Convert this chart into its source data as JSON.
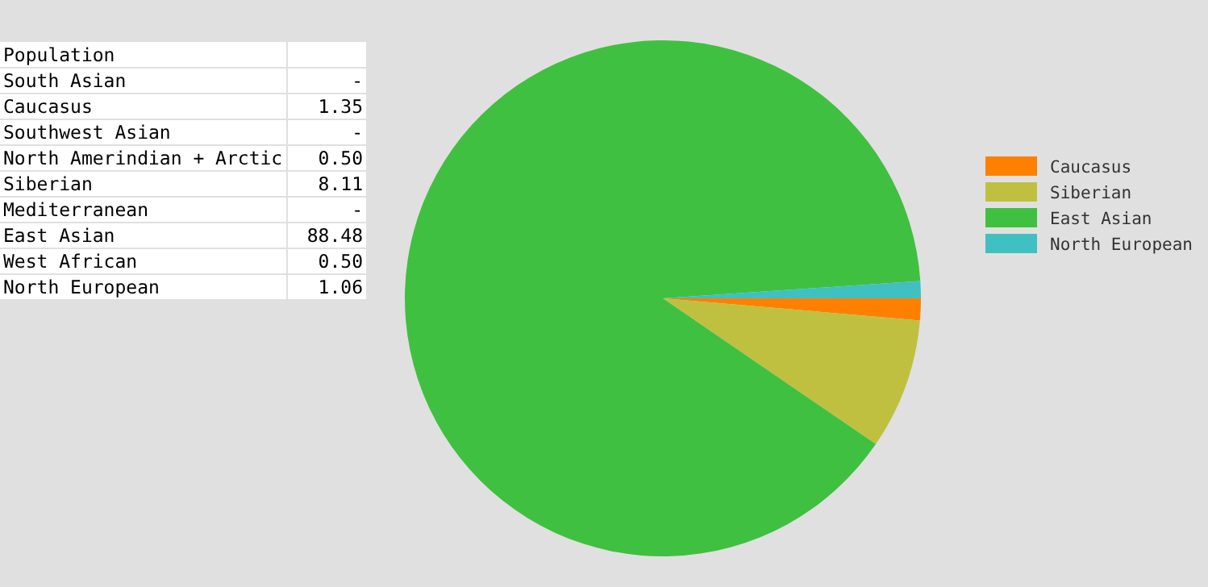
{
  "chart_data": [
    {
      "type": "other",
      "annotations": [
        "Population",
        "South Asian",
        "-",
        "Caucasus",
        "1.35",
        "Southwest Asian",
        "-",
        "North Amerindian + Arctic",
        "0.50",
        "Siberian",
        "8.11",
        "Mediterranean",
        "-",
        "East Asian",
        "88.48",
        "West African",
        "0.50",
        "North European",
        "1.06"
      ]
    },
    {
      "type": "pie",
      "categories": [
        "Caucasus",
        "Siberian",
        "East Asian",
        "North European"
      ],
      "values": [
        1.35,
        8.11,
        88.48,
        1.06
      ],
      "colors": [
        "#ff8000",
        "#c0c040",
        "#40c040",
        "#40c0c0"
      ],
      "legend": "top right"
    }
  ]
}
